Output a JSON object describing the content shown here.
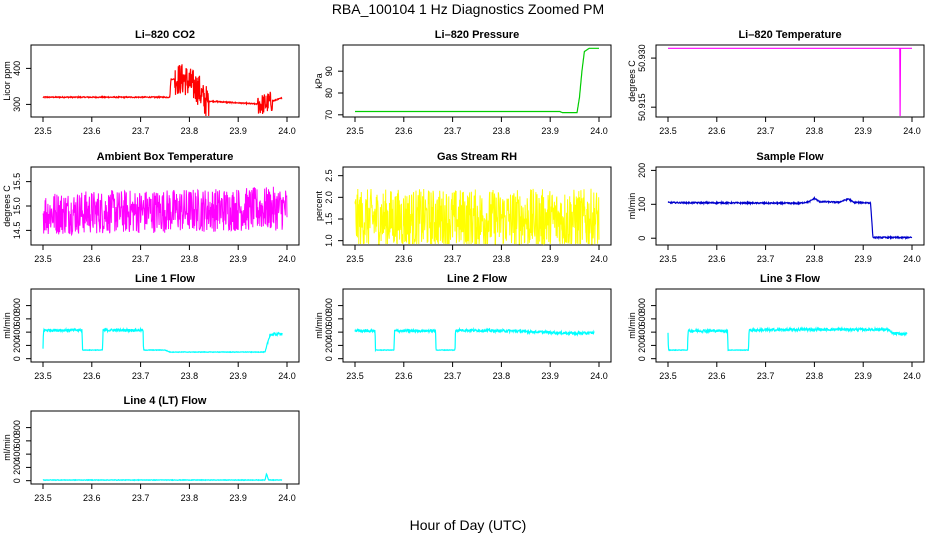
{
  "page": {
    "title": "RBA_100104  1 Hz Diagnostics Zoomed PM",
    "xlabel": "Hour of Day (UTC)"
  },
  "colors": {
    "red": "#ff0000",
    "green": "#00cc00",
    "magenta": "#ff00ff",
    "yellow": "#ffff00",
    "blue": "#0000cc",
    "cyan": "#00ffff"
  },
  "chart_data": [
    {
      "type": "line",
      "title": "Li–820 CO2",
      "ylabel": "Licor ppm",
      "color": "red",
      "xlim": [
        23.5,
        24.0
      ],
      "ylim": [
        265,
        465
      ],
      "xticks": [
        "23.5",
        "23.6",
        "23.7",
        "23.8",
        "23.9",
        "24.0"
      ],
      "yticks": [
        {
          "v": 300,
          "label": "300"
        },
        {
          "v": 400,
          "label": "400"
        }
      ],
      "series": [
        {
          "x": [
            23.5,
            23.76,
            23.762,
            23.79,
            23.82,
            23.83,
            23.95,
            23.99
          ],
          "y": [
            320,
            320,
            370,
            370,
            340,
            310,
            300,
            318
          ]
        }
      ]
    },
    {
      "type": "line",
      "title": "Li–820 Pressure",
      "ylabel": "kPa",
      "color": "green",
      "xlim": [
        23.5,
        24.0
      ],
      "ylim": [
        69,
        102
      ],
      "xticks": [
        "23.5",
        "23.6",
        "23.7",
        "23.8",
        "23.9",
        "24.0"
      ],
      "yticks": [
        {
          "v": 70,
          "label": "70"
        },
        {
          "v": 80,
          "label": "80"
        },
        {
          "v": 90,
          "label": "90"
        }
      ],
      "series": [
        {
          "x": [
            23.5,
            23.92,
            23.925,
            23.955,
            23.96,
            23.965,
            23.97,
            23.98,
            24.0
          ],
          "y": [
            71.5,
            71.5,
            71,
            71,
            78,
            90,
            99,
            100.5,
            100.5
          ]
        }
      ]
    },
    {
      "type": "line",
      "title": "Li–820 Temperature",
      "ylabel": "degrees C",
      "color": "magenta",
      "xlim": [
        23.5,
        24.0
      ],
      "ylim": [
        50.912,
        50.934
      ],
      "xticks": [
        "23.5",
        "23.6",
        "23.7",
        "23.8",
        "23.9",
        "24.0"
      ],
      "yticks": [
        {
          "v": 50.915,
          "label": "50.915"
        },
        {
          "v": 50.93,
          "label": "50.930"
        }
      ],
      "series": [
        {
          "x": [
            23.5,
            23.975,
            23.975,
            23.976,
            23.976,
            24.0
          ],
          "y": [
            50.933,
            50.933,
            50.912,
            50.912,
            50.933,
            50.933
          ]
        }
      ]
    },
    {
      "type": "line",
      "title": "Ambient Box Temperature",
      "ylabel": "degrees C",
      "color": "magenta",
      "xlim": [
        23.5,
        24.0
      ],
      "ylim": [
        14.2,
        15.8
      ],
      "xticks": [
        "23.5",
        "23.6",
        "23.7",
        "23.8",
        "23.9",
        "24.0"
      ],
      "yticks": [
        {
          "v": 14.5,
          "label": "14.5"
        },
        {
          "v": 15.0,
          "label": "15.0"
        },
        {
          "v": 15.5,
          "label": "15.5"
        }
      ],
      "series": [
        {
          "x": [
            23.5,
            24.0
          ],
          "y": [
            14.85,
            14.95
          ]
        }
      ]
    },
    {
      "type": "line",
      "title": "Gas Stream RH",
      "ylabel": "percent",
      "color": "yellow",
      "xlim": [
        23.5,
        24.0
      ],
      "ylim": [
        0.9,
        2.7
      ],
      "xticks": [
        "23.5",
        "23.6",
        "23.7",
        "23.8",
        "23.9",
        "24.0"
      ],
      "yticks": [
        {
          "v": 1.0,
          "label": "1.0"
        },
        {
          "v": 1.5,
          "label": "1.5"
        },
        {
          "v": 2.0,
          "label": "2.0"
        },
        {
          "v": 2.5,
          "label": "2.5"
        }
      ],
      "series": [
        {
          "x": [
            23.5,
            24.0
          ],
          "y": [
            1.5,
            1.5
          ]
        }
      ]
    },
    {
      "type": "line",
      "title": "Sample Flow",
      "ylabel": "ml/min",
      "color": "blue",
      "xlim": [
        23.5,
        24.0
      ],
      "ylim": [
        -20,
        210
      ],
      "xticks": [
        "23.5",
        "23.6",
        "23.7",
        "23.8",
        "23.9",
        "24.0"
      ],
      "yticks": [
        {
          "v": 0,
          "label": "0"
        },
        {
          "v": 100,
          "label": "100"
        },
        {
          "v": 200,
          "label": "200"
        }
      ],
      "series": [
        {
          "x": [
            23.5,
            23.77,
            23.79,
            23.8,
            23.81,
            23.85,
            23.87,
            23.88,
            23.915,
            23.92,
            24.0
          ],
          "y": [
            105,
            103,
            108,
            118,
            108,
            106,
            116,
            106,
            104,
            2,
            2
          ]
        }
      ]
    },
    {
      "type": "line",
      "title": "Line 1 Flow",
      "ylabel": "ml/min",
      "color": "cyan",
      "xlim": [
        23.5,
        24.0
      ],
      "ylim": [
        -50,
        1050
      ],
      "xticks": [
        "23.5",
        "23.6",
        "23.7",
        "23.8",
        "23.9",
        "24.0"
      ],
      "yticks": [
        {
          "v": 0,
          "label": "0"
        },
        {
          "v": 200,
          "label": "200"
        },
        {
          "v": 400,
          "label": "400"
        },
        {
          "v": 600,
          "label": "600"
        },
        {
          "v": 800,
          "label": "800"
        }
      ],
      "series": [
        {
          "x": [
            23.5,
            23.501,
            23.58,
            23.581,
            23.622,
            23.623,
            23.705,
            23.706,
            23.75,
            23.76,
            23.955,
            23.965,
            23.99
          ],
          "y": [
            150,
            430,
            430,
            130,
            130,
            430,
            430,
            130,
            130,
            100,
            100,
            360,
            380
          ]
        }
      ]
    },
    {
      "type": "line",
      "title": "Line 2 Flow",
      "ylabel": "ml/min",
      "color": "cyan",
      "xlim": [
        23.5,
        24.0
      ],
      "ylim": [
        -50,
        1050
      ],
      "xticks": [
        "23.5",
        "23.6",
        "23.7",
        "23.8",
        "23.9",
        "24.0"
      ],
      "yticks": [
        {
          "v": 0,
          "label": "0"
        },
        {
          "v": 200,
          "label": "200"
        },
        {
          "v": 400,
          "label": "400"
        },
        {
          "v": 600,
          "label": "600"
        },
        {
          "v": 800,
          "label": "800"
        }
      ],
      "series": [
        {
          "x": [
            23.5,
            23.541,
            23.542,
            23.58,
            23.581,
            23.665,
            23.666,
            23.705,
            23.706,
            23.8,
            23.81,
            23.96,
            23.99
          ],
          "y": [
            420,
            420,
            130,
            130,
            420,
            420,
            130,
            130,
            430,
            420,
            420,
            380,
            390
          ]
        }
      ]
    },
    {
      "type": "line",
      "title": "Line 3 Flow",
      "ylabel": "ml/min",
      "color": "cyan",
      "xlim": [
        23.5,
        24.0
      ],
      "ylim": [
        -50,
        1050
      ],
      "xticks": [
        "23.5",
        "23.6",
        "23.7",
        "23.8",
        "23.9",
        "24.0"
      ],
      "yticks": [
        {
          "v": 0,
          "label": "0"
        },
        {
          "v": 200,
          "label": "200"
        },
        {
          "v": 400,
          "label": "400"
        },
        {
          "v": 600,
          "label": "600"
        },
        {
          "v": 800,
          "label": "800"
        }
      ],
      "series": [
        {
          "x": [
            23.5,
            23.501,
            23.54,
            23.541,
            23.622,
            23.623,
            23.665,
            23.666,
            23.8,
            23.95,
            23.96,
            23.99
          ],
          "y": [
            400,
            130,
            130,
            420,
            420,
            130,
            130,
            430,
            440,
            440,
            380,
            370
          ]
        }
      ]
    },
    {
      "type": "line",
      "title": "Line 4 (LT) Flow",
      "ylabel": "ml/min",
      "color": "cyan",
      "xlim": [
        23.5,
        24.0
      ],
      "ylim": [
        -50,
        1050
      ],
      "xticks": [
        "23.5",
        "23.6",
        "23.7",
        "23.8",
        "23.9",
        "24.0"
      ],
      "yticks": [
        {
          "v": 0,
          "label": "0"
        },
        {
          "v": 200,
          "label": "200"
        },
        {
          "v": 400,
          "label": "400"
        },
        {
          "v": 600,
          "label": "600"
        },
        {
          "v": 800,
          "label": "800"
        }
      ],
      "series": [
        {
          "x": [
            23.5,
            23.955,
            23.958,
            23.962,
            23.965,
            23.99
          ],
          "y": [
            10,
            10,
            110,
            15,
            10,
            10
          ]
        }
      ]
    }
  ]
}
